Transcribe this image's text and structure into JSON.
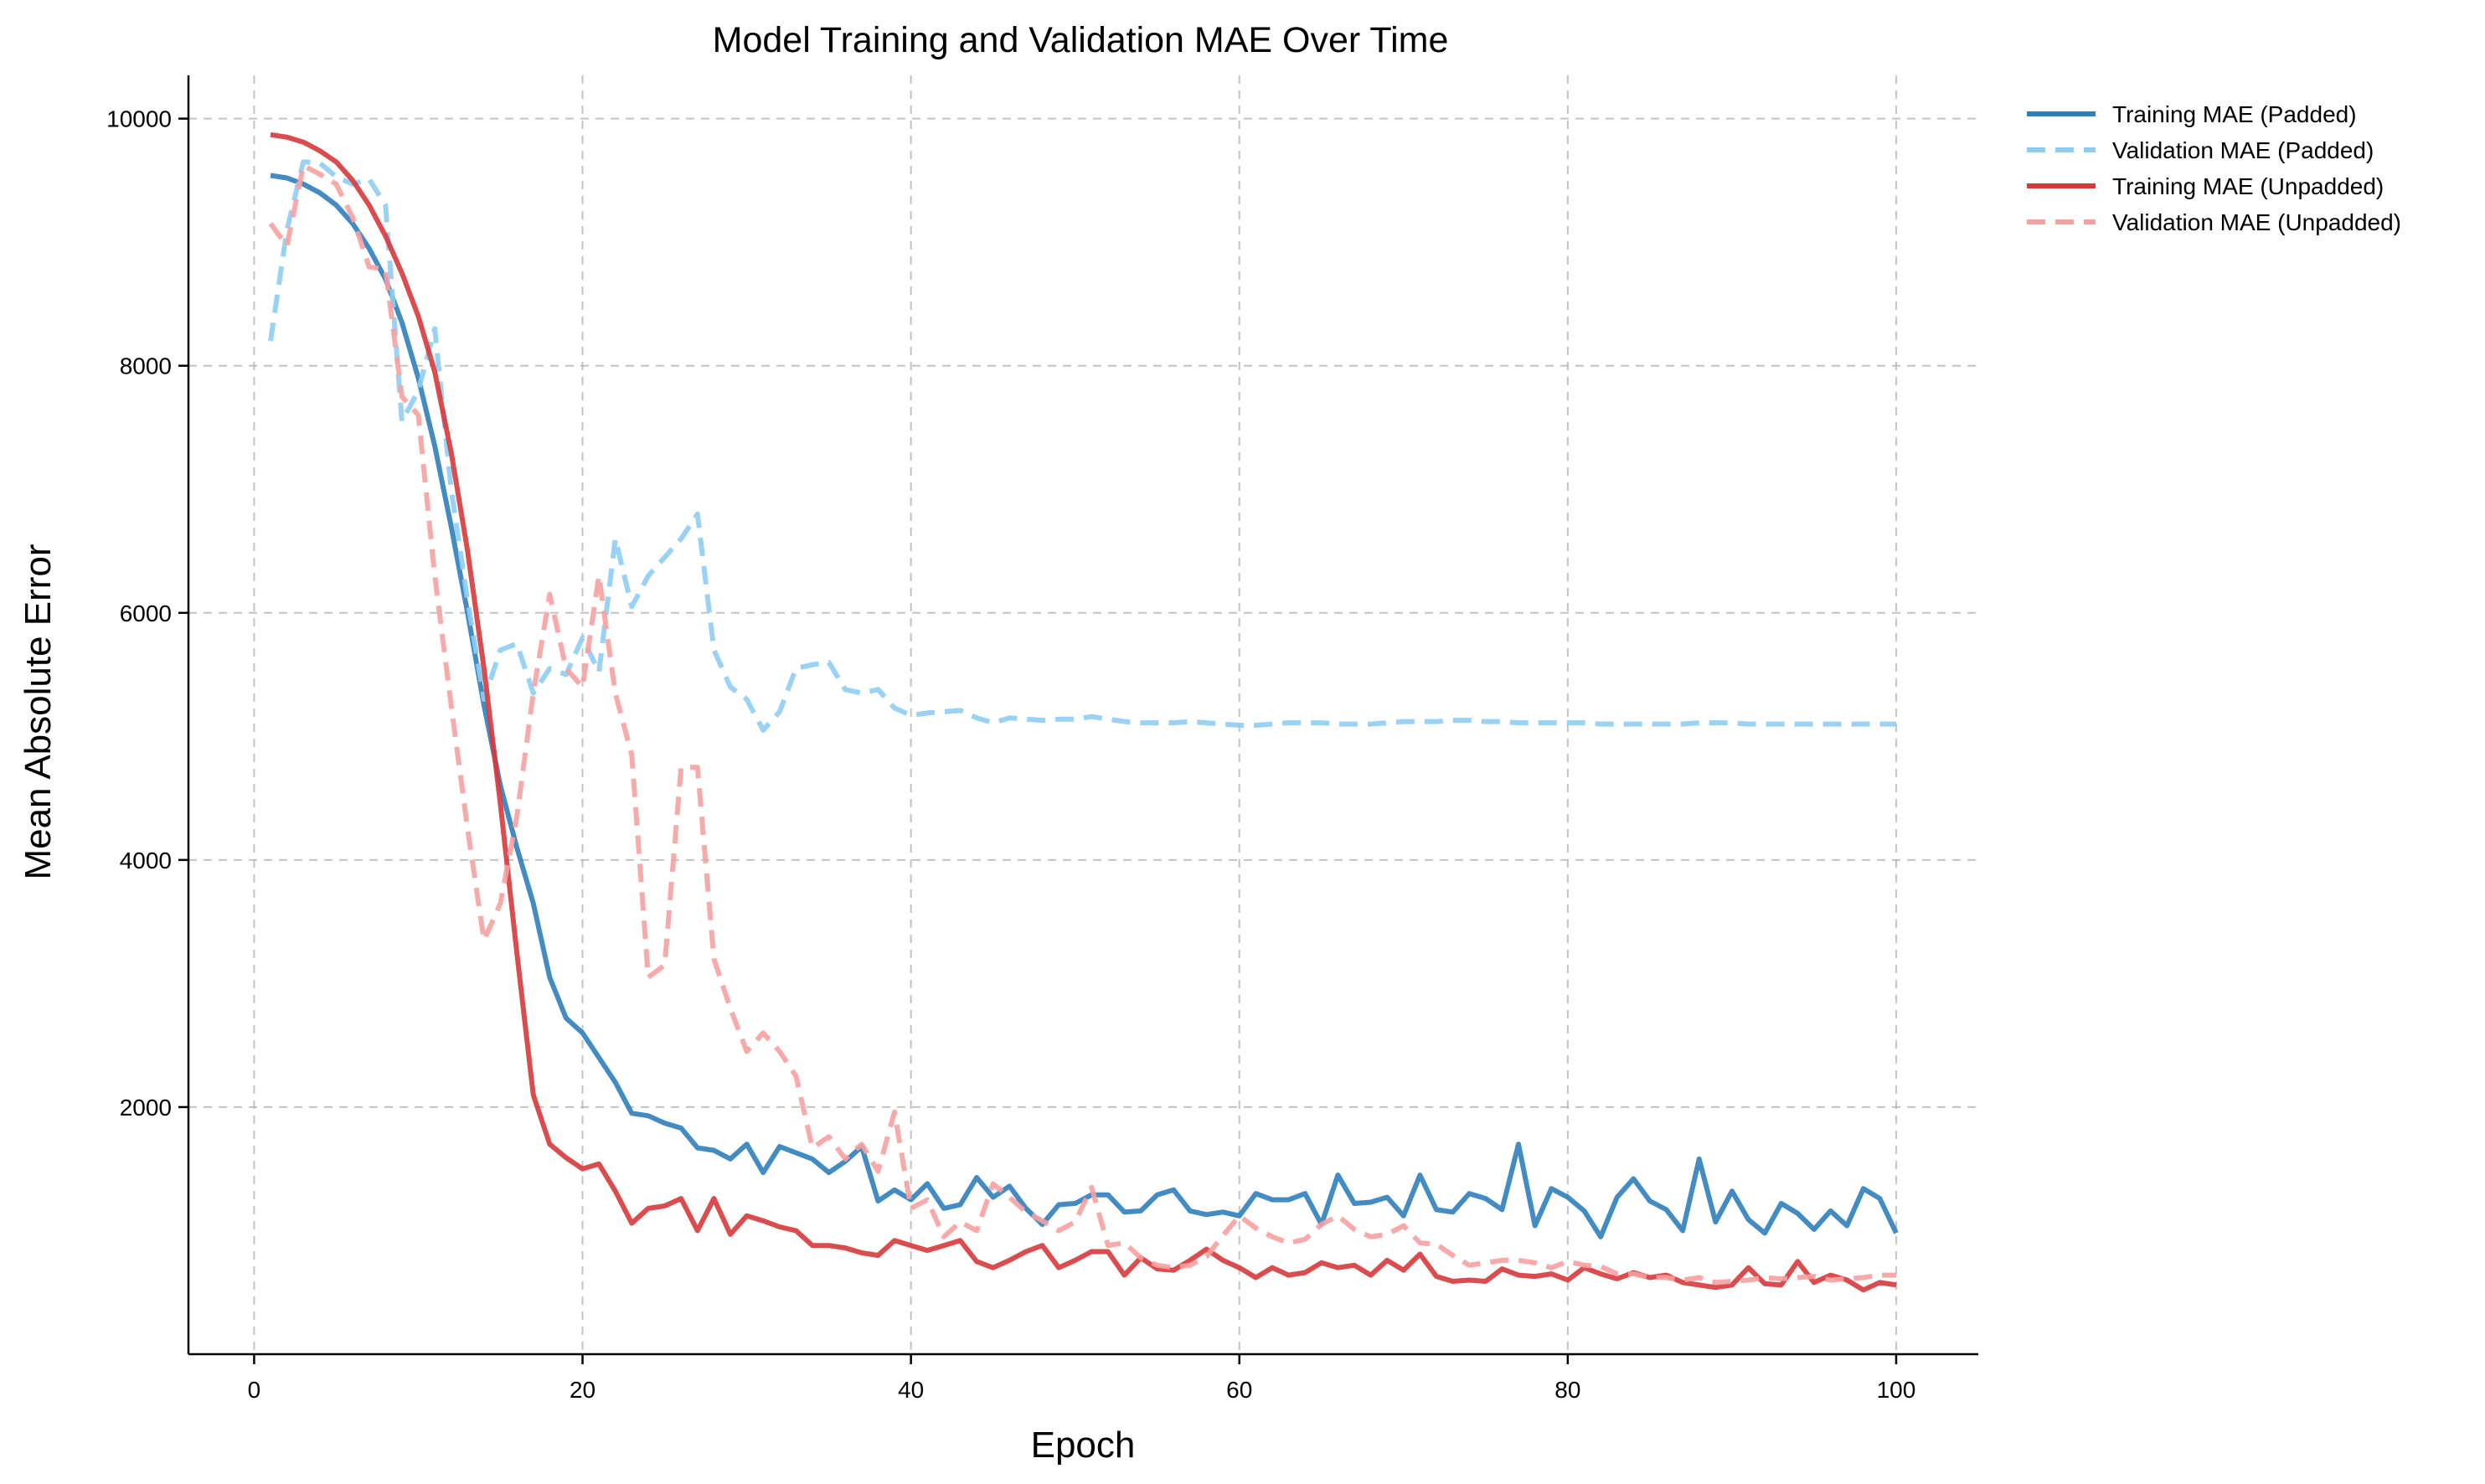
{
  "chart_data": {
    "type": "line",
    "title": "Model Training and Validation MAE Over Time",
    "xlabel": "Epoch",
    "ylabel": "Mean Absolute Error",
    "xlim": [
      -4,
      105
    ],
    "ylim": [
      0,
      10350
    ],
    "xticks": [
      0,
      20,
      40,
      60,
      80,
      100
    ],
    "yticks": [
      2000,
      4000,
      6000,
      8000,
      10000
    ],
    "grid": true,
    "legend_position": "top-right, outside plot area",
    "series": [
      {
        "name": "Training MAE (Padded)",
        "color": "#2f7fbd",
        "style": "solid",
        "values": [
          9540,
          9520,
          9470,
          9400,
          9300,
          9150,
          8950,
          8700,
          8350,
          7900,
          7350,
          6700,
          6000,
          5250,
          4600,
          4100,
          3650,
          3050,
          2720,
          2600,
          2400,
          2200,
          1950,
          1930,
          1870,
          1830,
          1670,
          1650,
          1580,
          1700,
          1470,
          1680,
          1630,
          1580,
          1470,
          1560,
          1680,
          1240,
          1330,
          1250,
          1380,
          1180,
          1210,
          1430,
          1270,
          1360,
          1180,
          1050,
          1210,
          1220,
          1290,
          1290,
          1150,
          1160,
          1290,
          1330,
          1160,
          1130,
          1150,
          1120,
          1300,
          1250,
          1250,
          1300,
          1050,
          1450,
          1220,
          1230,
          1270,
          1120,
          1450,
          1170,
          1150,
          1300,
          1260,
          1170,
          1700,
          1040,
          1340,
          1270,
          1160,
          950,
          1270,
          1420,
          1240,
          1170,
          1000,
          1580,
          1070,
          1320,
          1090,
          980,
          1220,
          1140,
          1010,
          1160,
          1040,
          1340,
          1260,
          980
        ]
      },
      {
        "name": "Validation MAE (Padded)",
        "color": "#8ecdf3",
        "style": "dashed",
        "values": [
          8200,
          9100,
          9650,
          9640,
          9530,
          9470,
          9510,
          9300,
          7550,
          7800,
          8300,
          7000,
          6100,
          5300,
          5700,
          5750,
          5350,
          5550,
          5500,
          5800,
          5520,
          6600,
          6050,
          6300,
          6450,
          6600,
          6800,
          5700,
          5400,
          5300,
          5050,
          5200,
          5550,
          5580,
          5600,
          5380,
          5350,
          5380,
          5230,
          5170,
          5190,
          5200,
          5210,
          5150,
          5110,
          5150,
          5140,
          5130,
          5140,
          5140,
          5160,
          5140,
          5120,
          5110,
          5110,
          5110,
          5120,
          5110,
          5100,
          5090,
          5090,
          5100,
          5110,
          5110,
          5110,
          5100,
          5100,
          5100,
          5110,
          5120,
          5120,
          5120,
          5130,
          5130,
          5120,
          5120,
          5110,
          5110,
          5110,
          5110,
          5110,
          5100,
          5100,
          5100,
          5100,
          5100,
          5100,
          5110,
          5110,
          5110,
          5100,
          5100,
          5100,
          5100,
          5100,
          5100,
          5100,
          5100,
          5100,
          5100
        ]
      },
      {
        "name": "Training MAE (Unpadded)",
        "color": "#d7393b",
        "style": "solid",
        "values": [
          9870,
          9850,
          9810,
          9740,
          9650,
          9500,
          9300,
          9050,
          8750,
          8400,
          7950,
          7300,
          6500,
          5550,
          4450,
          3250,
          2100,
          1700,
          1590,
          1500,
          1540,
          1320,
          1060,
          1180,
          1200,
          1260,
          1000,
          1260,
          970,
          1120,
          1080,
          1030,
          1000,
          880,
          880,
          860,
          820,
          800,
          920,
          880,
          840,
          880,
          920,
          750,
          700,
          760,
          830,
          880,
          700,
          760,
          830,
          830,
          640,
          780,
          690,
          680,
          760,
          850,
          760,
          700,
          620,
          700,
          640,
          660,
          740,
          700,
          720,
          640,
          760,
          680,
          810,
          630,
          590,
          600,
          590,
          690,
          640,
          630,
          650,
          600,
          700,
          650,
          610,
          660,
          620,
          640,
          580,
          560,
          540,
          560,
          700,
          570,
          560,
          750,
          580,
          640,
          600,
          520,
          580,
          560
        ]
      },
      {
        "name": "Validation MAE (Unpadded)",
        "color": "#f7a0a0",
        "style": "dashed",
        "values": [
          9150,
          8970,
          9620,
          9550,
          9470,
          9200,
          8800,
          8780,
          7750,
          7600,
          6300,
          5250,
          4250,
          3350,
          3650,
          4350,
          5350,
          6150,
          5550,
          5400,
          6300,
          5350,
          4850,
          3050,
          3150,
          4750,
          4750,
          3200,
          2800,
          2450,
          2600,
          2450,
          2250,
          1670,
          1760,
          1580,
          1700,
          1480,
          1960,
          1180,
          1250,
          950,
          1070,
          1000,
          1380,
          1270,
          1150,
          1080,
          1000,
          1070,
          1350,
          880,
          900,
          780,
          720,
          700,
          720,
          790,
          960,
          1120,
          1020,
          950,
          900,
          930,
          1050,
          1120,
          1010,
          950,
          970,
          1040,
          900,
          890,
          800,
          720,
          740,
          760,
          760,
          740,
          700,
          750,
          720,
          710,
          650,
          650,
          620,
          620,
          600,
          620,
          580,
          590,
          600,
          620,
          610,
          620,
          630,
          600,
          610,
          620,
          640,
          640
        ]
      }
    ]
  }
}
